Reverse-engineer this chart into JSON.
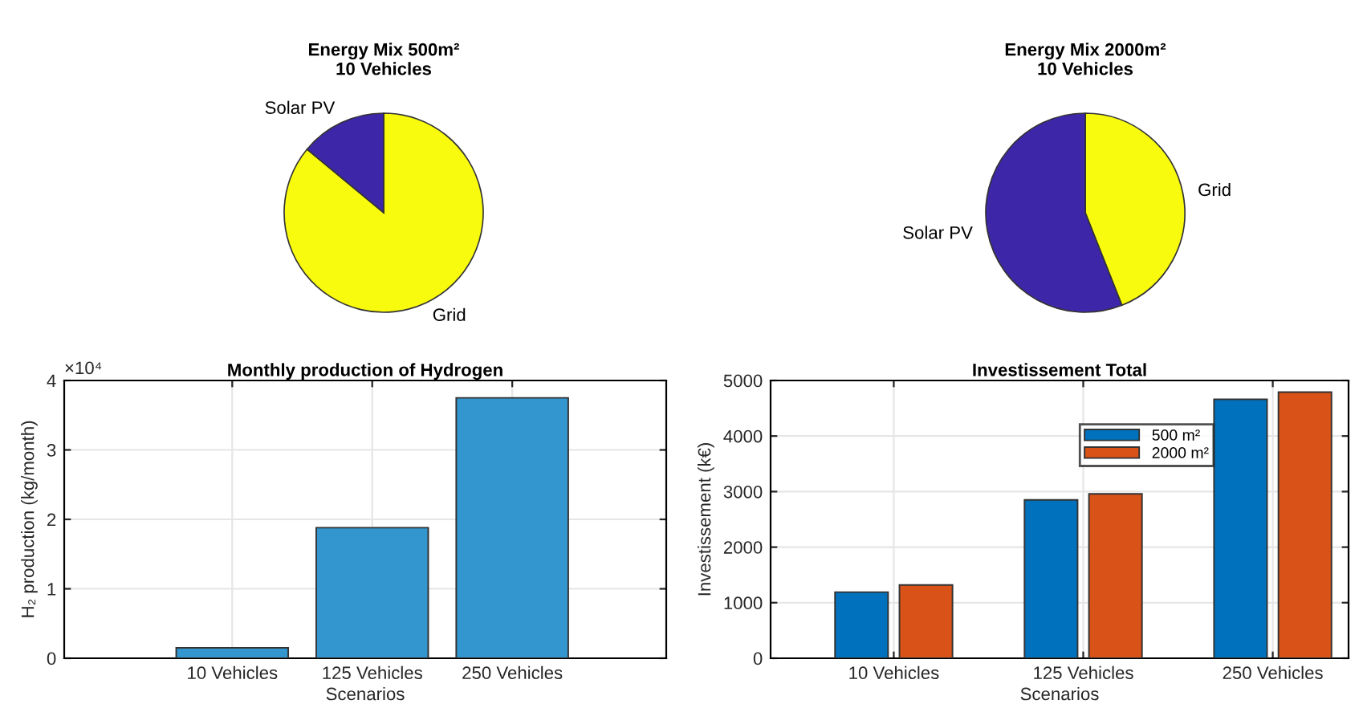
{
  "chart_data": [
    {
      "type": "pie",
      "title": "Energy Mix 500m²\n10 Vehicles",
      "categories": [
        "Grid",
        "Solar PV"
      ],
      "values": [
        86,
        14
      ],
      "colors": [
        "#f9fb0e",
        "#3e26a8"
      ]
    },
    {
      "type": "pie",
      "title": "Energy Mix 2000m²\n10 Vehicles",
      "categories": [
        "Grid",
        "Solar PV"
      ],
      "values": [
        44,
        56
      ],
      "colors": [
        "#f9fb0e",
        "#3e26a8"
      ]
    },
    {
      "type": "bar",
      "title": "Monthly production of Hydrogen",
      "xlabel": "Scenarios",
      "ylabel": "H₂ production (kg/month)",
      "categories": [
        "10 Vehicles",
        "125 Vehicles",
        "250 Vehicles"
      ],
      "series": [
        {
          "color": "#3496ce",
          "values": [
            0.15,
            1.88,
            3.75
          ]
        }
      ],
      "ylim": [
        0,
        4
      ],
      "yticks": [
        0,
        1,
        2,
        3,
        4
      ],
      "annotations": [
        "×10⁴"
      ],
      "grid": true
    },
    {
      "type": "bar",
      "title": "Investissement Total",
      "xlabel": "Scenarios",
      "ylabel": "Investissement (k€)",
      "categories": [
        "10 Vehicles",
        "125 Vehicles",
        "250 Vehicles"
      ],
      "series": [
        {
          "name": "500 m²",
          "color": "#0072bd",
          "values": [
            1190,
            2850,
            4660
          ]
        },
        {
          "name": "2000 m²",
          "color": "#d95319",
          "values": [
            1320,
            2960,
            4790
          ]
        }
      ],
      "ylim": [
        0,
        5000
      ],
      "yticks": [
        0,
        1000,
        2000,
        3000,
        4000,
        5000
      ],
      "grid": true,
      "legend": "top right"
    }
  ]
}
